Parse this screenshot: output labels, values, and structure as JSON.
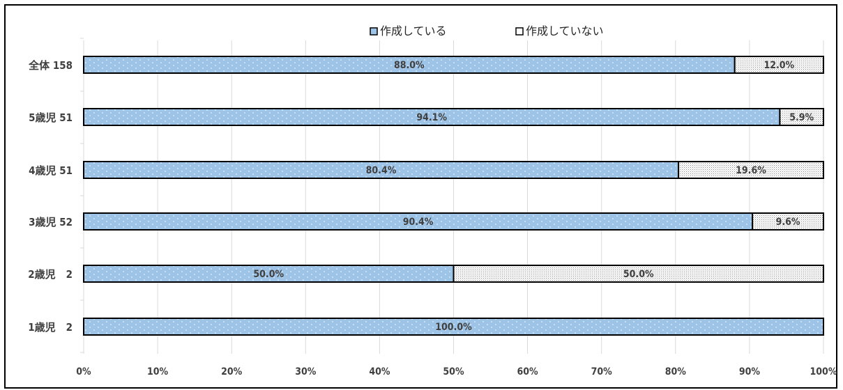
{
  "chart_data": {
    "type": "bar",
    "orientation": "horizontal",
    "stacked": true,
    "percent": true,
    "categories": [
      "全体 158",
      "5歳児 51",
      "4歳児 51",
      "3歳児 52",
      "2歳児　2",
      "1歳児　2"
    ],
    "series": [
      {
        "name": "作成している",
        "values": [
          88.0,
          94.1,
          80.4,
          90.4,
          50.0,
          100.0
        ],
        "labels": [
          "88.0%",
          "94.1%",
          "80.4%",
          "90.4%",
          "50.0%",
          "100.0%"
        ]
      },
      {
        "name": "作成していない",
        "values": [
          12.0,
          5.9,
          19.6,
          9.6,
          50.0,
          0.0
        ],
        "labels": [
          "12.0%",
          "5.9%",
          "19.6%",
          "9.6%",
          "50.0%",
          ""
        ]
      }
    ],
    "xticks": [
      "0%",
      "10%",
      "20%",
      "30%",
      "40%",
      "50%",
      "60%",
      "70%",
      "80%",
      "90%",
      "100%"
    ],
    "xlim": [
      0,
      100
    ],
    "grid": true,
    "legend_position": "top-center",
    "colors": [
      "#9dc3e6",
      "#ffffff"
    ],
    "legend_glyphs": [
      "■",
      "□"
    ]
  }
}
